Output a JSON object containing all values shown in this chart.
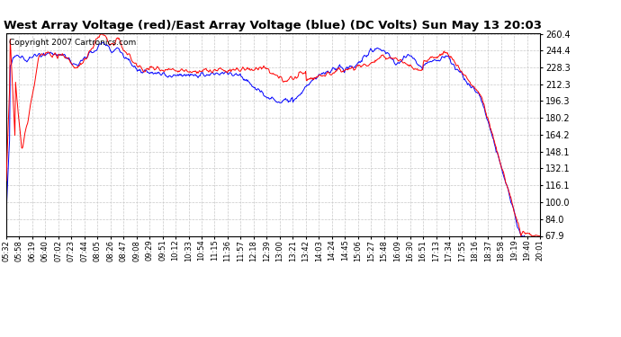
{
  "title": "West Array Voltage (red)/East Array Voltage (blue) (DC Volts) Sun May 13 20:03",
  "copyright": "Copyright 2007 Cartronics.com",
  "title_fontsize": 9.5,
  "copyright_fontsize": 6.5,
  "bg_color": "#ffffff",
  "plot_bg_color": "#ffffff",
  "grid_color": "#c8c8c8",
  "red_color": "#ff0000",
  "blue_color": "#0000ff",
  "linewidth": 0.7,
  "yticks": [
    67.9,
    84.0,
    100.0,
    116.1,
    132.1,
    148.1,
    164.2,
    180.2,
    196.3,
    212.3,
    228.3,
    244.4,
    260.4
  ],
  "ylim": [
    67.9,
    260.4
  ],
  "xtick_labels": [
    "05:32",
    "05:58",
    "06:19",
    "06:40",
    "07:02",
    "07:23",
    "07:44",
    "08:05",
    "08:26",
    "08:47",
    "09:08",
    "09:29",
    "09:51",
    "10:12",
    "10:33",
    "10:54",
    "11:15",
    "11:36",
    "11:57",
    "12:18",
    "12:39",
    "13:00",
    "13:21",
    "13:42",
    "14:03",
    "14:24",
    "14:45",
    "15:06",
    "15:27",
    "15:48",
    "16:09",
    "16:30",
    "16:51",
    "17:13",
    "17:34",
    "17:55",
    "18:16",
    "18:37",
    "18:58",
    "19:19",
    "19:40",
    "20:01"
  ]
}
